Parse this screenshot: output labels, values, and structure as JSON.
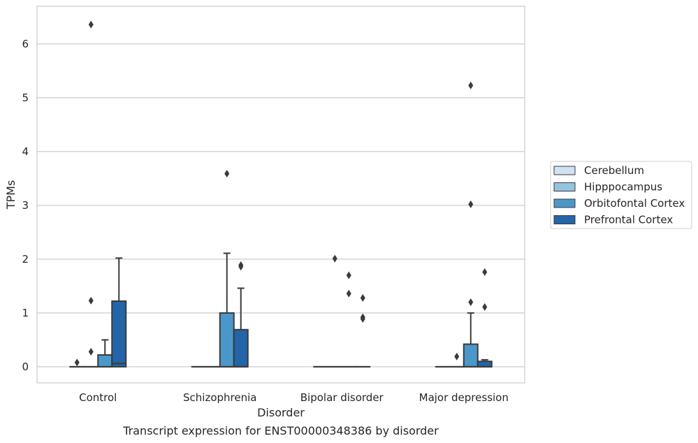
{
  "chart_data": {
    "type": "boxplot",
    "title": "",
    "xlabel": "Disorder",
    "ylabel": "TPMs",
    "caption": "Transcript expression for ENST00000348386 by disorder",
    "categories": [
      "Control",
      "Schizophrenia",
      "Bipolar disorder",
      "Major depression"
    ],
    "y_ticks": [
      0,
      1,
      2,
      3,
      4,
      5,
      6
    ],
    "ylim": [
      -0.3,
      6.7
    ],
    "grid": "horizontal",
    "legend_position": "right",
    "series": [
      {
        "name": "Cerebellum",
        "color": "#d0e1f2",
        "boxes": [
          {
            "q1": 0,
            "median": 0,
            "q3": 0,
            "whisker_low": 0,
            "whisker_high": 0,
            "outliers": [
              0.08
            ]
          },
          {
            "q1": 0,
            "median": 0,
            "q3": 0,
            "whisker_low": 0,
            "whisker_high": 0,
            "outliers": []
          },
          {
            "q1": 0,
            "median": 0,
            "q3": 0,
            "whisker_low": 0,
            "whisker_high": 0,
            "outliers": []
          },
          {
            "q1": 0,
            "median": 0,
            "q3": 0,
            "whisker_low": 0,
            "whisker_high": 0,
            "outliers": []
          }
        ]
      },
      {
        "name": "Hipppocampus",
        "color": "#94c4df",
        "boxes": [
          {
            "q1": 0,
            "median": 0,
            "q3": 0,
            "whisker_low": 0,
            "whisker_high": 0,
            "outliers": [
              0.28,
              1.23,
              6.36
            ]
          },
          {
            "q1": 0,
            "median": 0,
            "q3": 0,
            "whisker_low": 0,
            "whisker_high": 0,
            "outliers": []
          },
          {
            "q1": 0,
            "median": 0,
            "q3": 0,
            "whisker_low": 0,
            "whisker_high": 0,
            "outliers": [
              2.01
            ]
          },
          {
            "q1": 0,
            "median": 0,
            "q3": 0,
            "whisker_low": 0,
            "whisker_high": 0,
            "outliers": [
              0.19
            ]
          }
        ]
      },
      {
        "name": "Orbitofontal Cortex",
        "color": "#4a98c9",
        "boxes": [
          {
            "q1": 0,
            "median": 0,
            "q3": 0.22,
            "whisker_low": 0,
            "whisker_high": 0.5,
            "outliers": []
          },
          {
            "q1": 0,
            "median": 0,
            "q3": 1.0,
            "whisker_low": 0,
            "whisker_high": 2.11,
            "outliers": [
              3.59
            ]
          },
          {
            "q1": 0,
            "median": 0,
            "q3": 0,
            "whisker_low": 0,
            "whisker_high": 0,
            "outliers": [
              1.36,
              1.7
            ]
          },
          {
            "q1": 0,
            "median": 0,
            "q3": 0.42,
            "whisker_low": 0,
            "whisker_high": 1.0,
            "outliers": [
              1.2,
              3.02,
              5.23
            ]
          }
        ]
      },
      {
        "name": "Prefrontal Cortex",
        "color": "#2464a8",
        "boxes": [
          {
            "q1": 0,
            "median": 0.06,
            "q3": 1.22,
            "whisker_low": 0,
            "whisker_high": 2.02,
            "outliers": []
          },
          {
            "q1": 0,
            "median": 0,
            "q3": 0.69,
            "whisker_low": 0,
            "whisker_high": 1.46,
            "outliers": [
              1.86,
              1.89
            ]
          },
          {
            "q1": 0,
            "median": 0,
            "q3": 0,
            "whisker_low": 0,
            "whisker_high": 0,
            "outliers": [
              0.89,
              0.92,
              1.28
            ]
          },
          {
            "q1": 0,
            "median": 0,
            "q3": 0.1,
            "whisker_low": 0,
            "whisker_high": 0.13,
            "outliers": [
              1.11,
              1.76
            ]
          }
        ]
      }
    ]
  }
}
